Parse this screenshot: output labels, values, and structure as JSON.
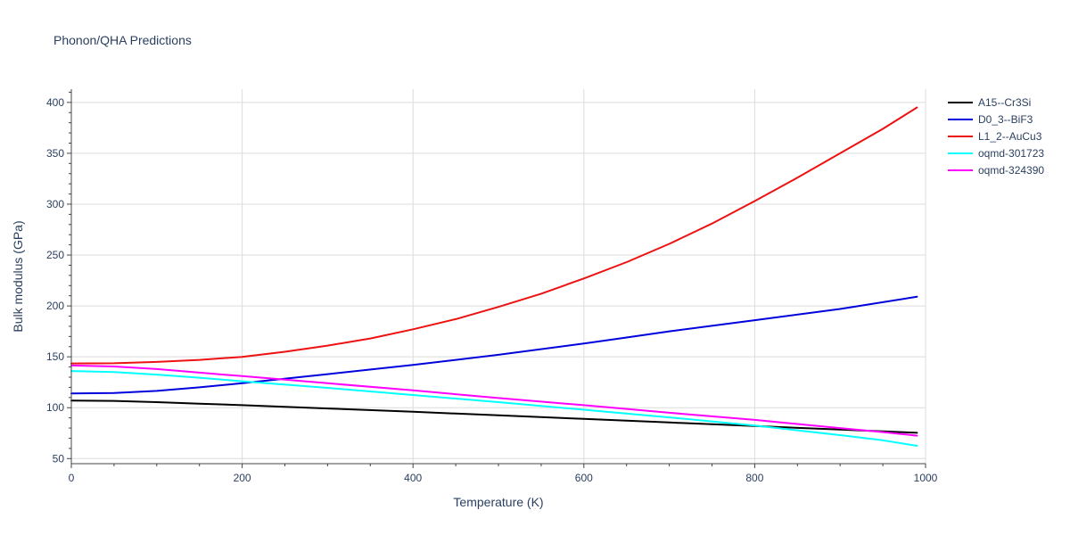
{
  "chart_data": {
    "type": "line",
    "title": "Phonon/QHA Predictions",
    "xlabel": "Temperature (K)",
    "ylabel": "Bulk modulus (GPa)",
    "xlim": [
      0,
      1000
    ],
    "ylim": [
      45,
      413
    ],
    "x_ticks": [
      0,
      200,
      400,
      600,
      800,
      1000
    ],
    "y_ticks": [
      50,
      100,
      150,
      200,
      250,
      300,
      350,
      400
    ],
    "x_minor_step": 50,
    "y_minor_step": 10,
    "grid": true,
    "legend_position": "top-right",
    "series": [
      {
        "name": "A15--Cr3Si",
        "color": "#000000",
        "points": [
          [
            0,
            107
          ],
          [
            50,
            106.7
          ],
          [
            100,
            105.5
          ],
          [
            150,
            104
          ],
          [
            200,
            102.5
          ],
          [
            300,
            99.2
          ],
          [
            400,
            96
          ],
          [
            500,
            92.5
          ],
          [
            600,
            89
          ],
          [
            700,
            85.5
          ],
          [
            800,
            82
          ],
          [
            900,
            78.5
          ],
          [
            990,
            75.3
          ]
        ]
      },
      {
        "name": "D0_3--BiF3",
        "color": "#0000dd",
        "points": [
          [
            0,
            114
          ],
          [
            50,
            114.5
          ],
          [
            100,
            116.5
          ],
          [
            150,
            120
          ],
          [
            200,
            124
          ],
          [
            300,
            133
          ],
          [
            400,
            142
          ],
          [
            500,
            152
          ],
          [
            600,
            163
          ],
          [
            650,
            169
          ],
          [
            700,
            175
          ],
          [
            800,
            186
          ],
          [
            900,
            197
          ],
          [
            990,
            209
          ]
        ]
      },
      {
        "name": "L1_2--AuCu3",
        "color": "#ee1111",
        "points": [
          [
            0,
            143.5
          ],
          [
            50,
            143.7
          ],
          [
            100,
            145
          ],
          [
            150,
            147
          ],
          [
            200,
            150
          ],
          [
            250,
            155
          ],
          [
            300,
            161
          ],
          [
            350,
            168
          ],
          [
            400,
            177
          ],
          [
            450,
            187
          ],
          [
            500,
            199
          ],
          [
            550,
            212
          ],
          [
            600,
            227
          ],
          [
            650,
            243
          ],
          [
            700,
            261
          ],
          [
            750,
            281
          ],
          [
            800,
            303
          ],
          [
            850,
            326
          ],
          [
            900,
            350
          ],
          [
            950,
            374
          ],
          [
            990,
            395
          ]
        ]
      },
      {
        "name": "oqmd-301723",
        "color": "#00ffff",
        "points": [
          [
            0,
            136
          ],
          [
            50,
            135
          ],
          [
            100,
            132.5
          ],
          [
            150,
            129.5
          ],
          [
            200,
            126
          ],
          [
            300,
            119.5
          ],
          [
            400,
            112.5
          ],
          [
            500,
            105.5
          ],
          [
            600,
            98
          ],
          [
            700,
            90.5
          ],
          [
            800,
            82.5
          ],
          [
            900,
            73
          ],
          [
            950,
            68
          ],
          [
            990,
            62.5
          ]
        ]
      },
      {
        "name": "oqmd-324390",
        "color": "#ff00ff",
        "points": [
          [
            0,
            141.5
          ],
          [
            50,
            140.5
          ],
          [
            100,
            138
          ],
          [
            150,
            134.5
          ],
          [
            200,
            131
          ],
          [
            300,
            124
          ],
          [
            400,
            117
          ],
          [
            500,
            109.5
          ],
          [
            600,
            102.5
          ],
          [
            700,
            95
          ],
          [
            800,
            88
          ],
          [
            900,
            80
          ],
          [
            950,
            76
          ],
          [
            990,
            72.5
          ]
        ]
      }
    ]
  }
}
